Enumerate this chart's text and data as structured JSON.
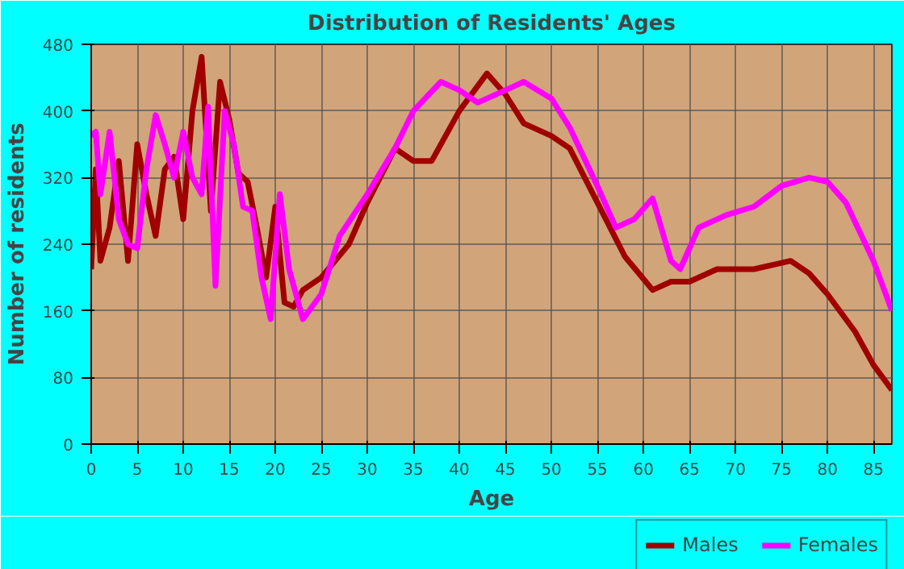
{
  "chart_data": {
    "type": "line",
    "title": "Distribution of Residents' Ages",
    "xlabel": "Age",
    "ylabel": "Number of residents",
    "xlim": [
      0,
      87
    ],
    "ylim": [
      0,
      480
    ],
    "xticks": [
      0,
      5,
      10,
      15,
      20,
      25,
      30,
      35,
      40,
      45,
      50,
      55,
      60,
      65,
      70,
      75,
      80,
      85
    ],
    "yticks": [
      0,
      80,
      160,
      240,
      320,
      400,
      480
    ],
    "grid": true,
    "legend": "bottom right",
    "marker": "none",
    "line_style": "solid",
    "series": [
      {
        "name": "Males",
        "color": "#a00000",
        "x": [
          0,
          0.5,
          1,
          2,
          3,
          4,
          5,
          6,
          7,
          8,
          9,
          10,
          11,
          12,
          13,
          14,
          15,
          16,
          17,
          18,
          19,
          20,
          21,
          22,
          23,
          25,
          28,
          30,
          33,
          35,
          37,
          40,
          43,
          45,
          47,
          50,
          52,
          55,
          58,
          61,
          63,
          65,
          68,
          70,
          72,
          76,
          78,
          80,
          83,
          85,
          87
        ],
        "values": [
          210,
          330,
          220,
          260,
          340,
          220,
          360,
          300,
          250,
          330,
          345,
          270,
          400,
          465,
          280,
          435,
          390,
          325,
          315,
          260,
          200,
          285,
          170,
          165,
          185,
          200,
          240,
          290,
          355,
          340,
          340,
          400,
          445,
          420,
          385,
          370,
          355,
          290,
          225,
          185,
          195,
          195,
          210,
          210,
          210,
          220,
          205,
          180,
          135,
          95,
          65
        ]
      },
      {
        "name": "Females",
        "color": "#ff00ff",
        "x": [
          0,
          0.5,
          1,
          2,
          3,
          4,
          5,
          6,
          7,
          8,
          9,
          10,
          11,
          12,
          12.7,
          13.5,
          14.5,
          15.5,
          16.5,
          17.5,
          18.5,
          19.5,
          20.5,
          21.5,
          23,
          25,
          27,
          30,
          33,
          35,
          38,
          40,
          42,
          45,
          47,
          50,
          52,
          55,
          57,
          59,
          61,
          63,
          64,
          66,
          69,
          72,
          75,
          78,
          80,
          82,
          85,
          87
        ],
        "values": [
          370,
          375,
          300,
          375,
          270,
          240,
          235,
          330,
          395,
          360,
          320,
          375,
          320,
          300,
          405,
          190,
          400,
          360,
          285,
          280,
          200,
          150,
          300,
          210,
          150,
          180,
          250,
          300,
          355,
          400,
          435,
          425,
          410,
          425,
          435,
          415,
          380,
          310,
          260,
          270,
          295,
          220,
          210,
          260,
          275,
          285,
          310,
          320,
          315,
          290,
          220,
          160
        ]
      }
    ]
  }
}
